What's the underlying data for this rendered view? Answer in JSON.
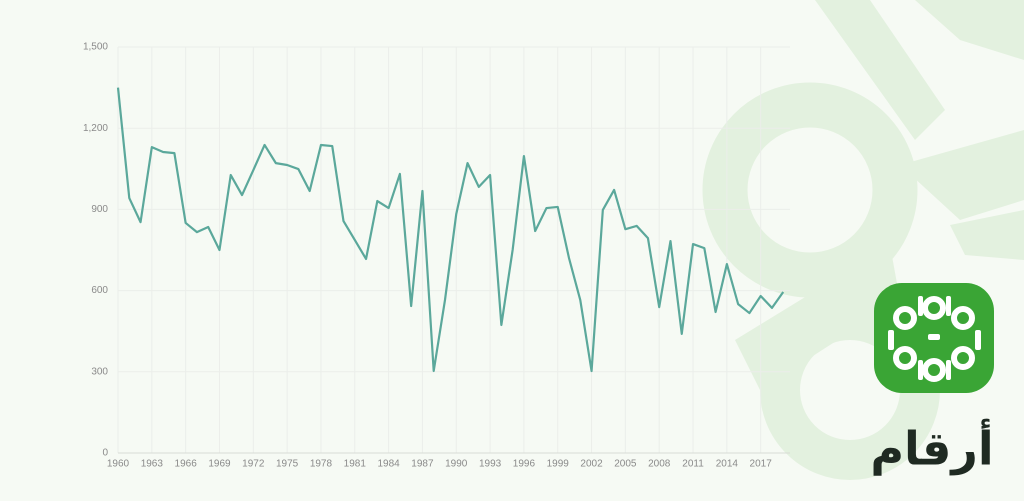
{
  "chart_data": {
    "type": "line",
    "x": [
      1960,
      1961,
      1962,
      1963,
      1964,
      1965,
      1966,
      1967,
      1968,
      1969,
      1970,
      1971,
      1972,
      1973,
      1974,
      1975,
      1976,
      1977,
      1978,
      1979,
      1980,
      1981,
      1982,
      1983,
      1984,
      1985,
      1986,
      1987,
      1988,
      1989,
      1990,
      1991,
      1992,
      1993,
      1994,
      1995,
      1996,
      1997,
      1998,
      1999,
      2000,
      2001,
      2002,
      2003,
      2004,
      2005,
      2006,
      2007,
      2008,
      2009,
      2010,
      2011,
      2012,
      2013,
      2014,
      2015,
      2016,
      2017,
      2018,
      2019
    ],
    "series": [
      {
        "color": "#5ba89b",
        "values": [
          1350,
          942,
          853,
          1130,
          1112,
          1108,
          850,
          816,
          835,
          750,
          1027,
          953,
          1045,
          1138,
          1071,
          1064,
          1049,
          968,
          1138,
          1134,
          857,
          787,
          717,
          931,
          905,
          1031,
          543,
          968,
          303,
          565,
          883,
          1071,
          983,
          1027,
          473,
          750,
          1097,
          820,
          905,
          909,
          720,
          565,
          303,
          898,
          972,
          827,
          839,
          794,
          539,
          783,
          440,
          772,
          757,
          521,
          698,
          550,
          517,
          580,
          536,
          595
        ]
      }
    ],
    "xlim": [
      1960,
      2019.6
    ],
    "xticks": [
      1960,
      1963,
      1966,
      1969,
      1972,
      1975,
      1978,
      1981,
      1984,
      1987,
      1990,
      1993,
      1996,
      1999,
      2002,
      2005,
      2008,
      2011,
      2014,
      2017
    ],
    "ylim": [
      0,
      1500
    ],
    "yticks": [
      0,
      300,
      600,
      900,
      {
        "value": 1200,
        "label": "1,200"
      },
      {
        "value": 1500,
        "label": "1,500"
      }
    ],
    "grid": true
  },
  "logo": {
    "text": "أرقام"
  }
}
